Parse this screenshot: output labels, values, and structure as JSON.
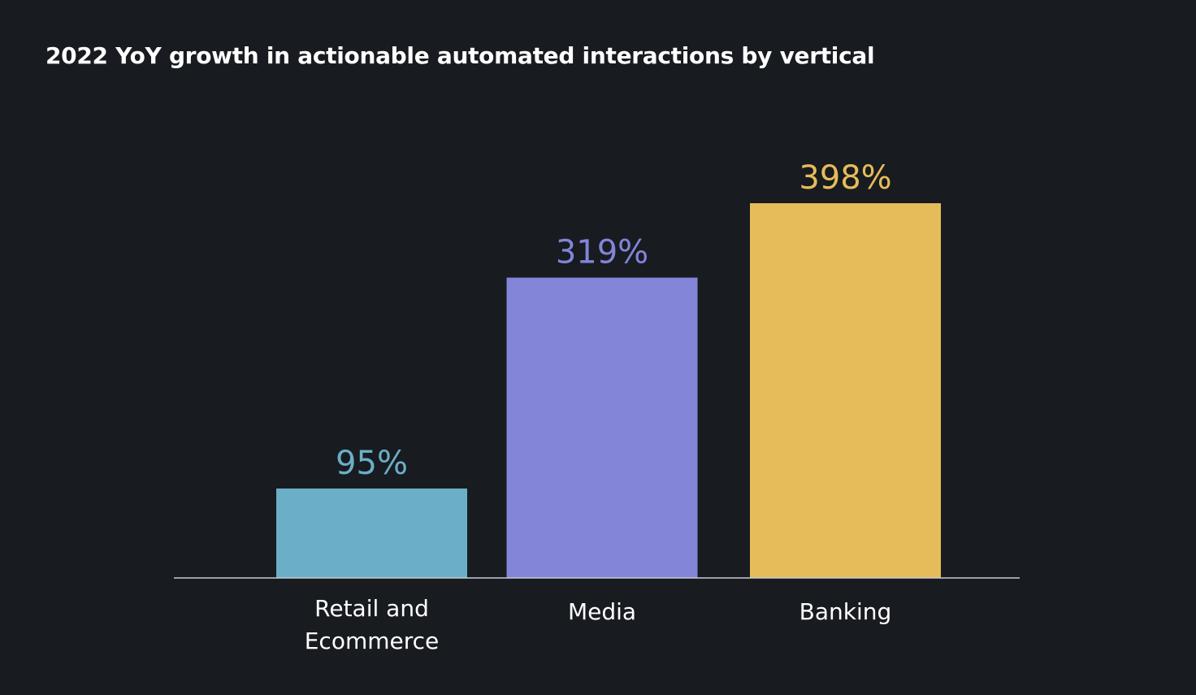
{
  "chart_data": {
    "type": "bar",
    "title": "2022 YoY growth in actionable automated interactions by vertical",
    "categories": [
      [
        "Retail and",
        "Ecommerce"
      ],
      [
        "Media"
      ],
      [
        "Banking"
      ]
    ],
    "values": [
      95,
      319,
      398
    ],
    "value_labels": [
      "95%",
      "319%",
      "398%"
    ],
    "colors": [
      "#6aafc7",
      "#8285d8",
      "#e6bc5a"
    ],
    "ylim": [
      0,
      400
    ],
    "grid": false,
    "xlabel": "",
    "ylabel": ""
  },
  "theme": {
    "background": "#181b20",
    "axis_color": "#c8ccd2",
    "text_color": "#ffffff"
  }
}
